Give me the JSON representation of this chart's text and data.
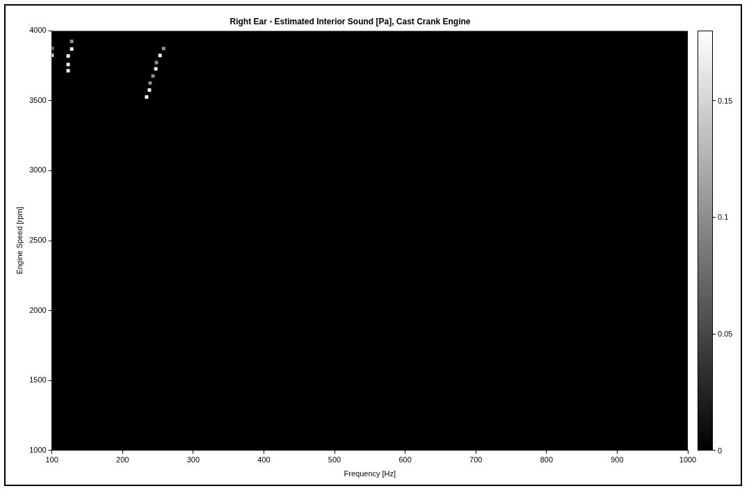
{
  "chart_data": {
    "type": "scatter",
    "title": "Right Ear - Estimated Interior Sound [Pa], Cast Crank Engine",
    "xlabel": "Frequency [Hz]",
    "ylabel": "Engine Speed [rpm]",
    "x": [
      100,
      100,
      123,
      123,
      123,
      128,
      128,
      234,
      238,
      239,
      243,
      247,
      248,
      253,
      258
    ],
    "values": [
      3825,
      3875,
      3820,
      3760,
      3715,
      3870,
      3925,
      3527,
      3577,
      3627,
      3677,
      3728,
      3773,
      3824,
      3874
    ],
    "cvalues": [
      0.17,
      0.1,
      0.17,
      0.17,
      0.17,
      0.17,
      0.1,
      0.17,
      0.17,
      0.1,
      0.1,
      0.17,
      0.1,
      0.17,
      0.1
    ],
    "xlim": [
      100,
      1000
    ],
    "xticks": [
      100,
      200,
      300,
      400,
      500,
      600,
      700,
      800,
      900,
      1000
    ],
    "ylim": [
      1000,
      4000
    ],
    "yticks": [
      1000,
      1500,
      2000,
      2500,
      3000,
      3500,
      4000
    ],
    "clim": [
      0,
      0.18
    ],
    "cticks": [
      0,
      0.05,
      0.1,
      0.15
    ],
    "marker": "square",
    "grid": false,
    "legend": false
  }
}
